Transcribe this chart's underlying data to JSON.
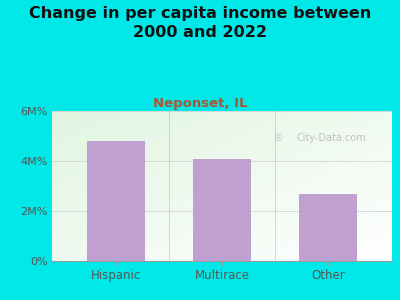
{
  "title": "Change in per capita income between\n2000 and 2022",
  "subtitle": "Neponset, IL",
  "categories": [
    "Hispanic",
    "Multirace",
    "Other"
  ],
  "values": [
    4800000,
    4100000,
    2700000
  ],
  "bar_color": "#c0a0d0",
  "background_color": "#00e8e8",
  "title_fontsize": 11.5,
  "subtitle_fontsize": 9.5,
  "tick_color": "#555555",
  "subtitle_color": "#aa5533",
  "ylim": [
    0,
    6000000
  ],
  "yticks": [
    0,
    2000000,
    4000000,
    6000000
  ],
  "ytick_labels": [
    "0%",
    "2M%",
    "4M%",
    "6M%"
  ],
  "watermark": "City-Data.com"
}
